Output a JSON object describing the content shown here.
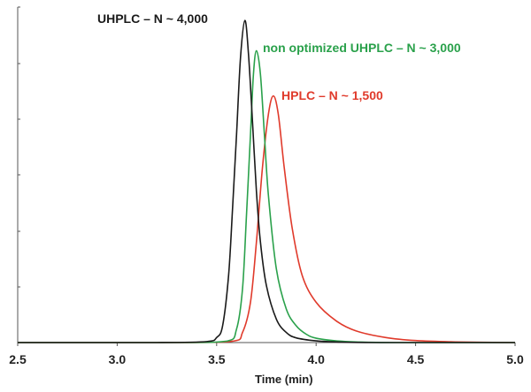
{
  "chart_data": {
    "type": "line",
    "title": "",
    "xlabel": "Time (min)",
    "ylabel": "",
    "xlim": [
      2.5,
      5.0
    ],
    "ylim": [
      0,
      1
    ],
    "x_ticks": [
      2.5,
      3.0,
      3.5,
      4.0,
      4.5,
      5.0
    ],
    "x_tick_labels": [
      "2.5",
      "3.0",
      "3.5",
      "4.0",
      "4.5",
      "5.0"
    ],
    "grid": false,
    "series": [
      {
        "name": "UHPLC – N ~ 4,000",
        "color": "#1a1a1a",
        "peak_x": 3.642,
        "peak_y": 0.96,
        "x": [
          2.5,
          3.2,
          3.45,
          3.5,
          3.53,
          3.56,
          3.58,
          3.6,
          3.62,
          3.642,
          3.66,
          3.68,
          3.7,
          3.72,
          3.75,
          3.8,
          3.85,
          3.9,
          4.0,
          4.1,
          4.3,
          5.0
        ],
        "values": [
          0.0,
          0.0,
          0.003,
          0.015,
          0.05,
          0.2,
          0.4,
          0.62,
          0.85,
          0.96,
          0.86,
          0.66,
          0.45,
          0.3,
          0.17,
          0.07,
          0.03,
          0.014,
          0.005,
          0.002,
          0.0,
          0.0
        ]
      },
      {
        "name": "non optimized UHPLC – N ~ 3,000",
        "color": "#2aa14b",
        "peak_x": 3.7,
        "peak_y": 0.87,
        "x": [
          2.5,
          3.3,
          3.55,
          3.6,
          3.63,
          3.65,
          3.67,
          3.685,
          3.7,
          3.72,
          3.74,
          3.76,
          3.8,
          3.85,
          3.9,
          3.95,
          4.0,
          4.1,
          4.2,
          4.4,
          5.0
        ],
        "values": [
          0.0,
          0.0,
          0.004,
          0.04,
          0.16,
          0.38,
          0.62,
          0.8,
          0.87,
          0.8,
          0.62,
          0.44,
          0.22,
          0.1,
          0.05,
          0.025,
          0.013,
          0.005,
          0.002,
          0.0,
          0.0
        ]
      },
      {
        "name": "HPLC – N ~ 1,500",
        "color": "#e03a2b",
        "peak_x": 3.785,
        "peak_y": 0.735,
        "x": [
          2.5,
          3.3,
          3.58,
          3.63,
          3.67,
          3.7,
          3.73,
          3.76,
          3.785,
          3.81,
          3.84,
          3.88,
          3.93,
          4.0,
          4.1,
          4.2,
          4.35,
          4.5,
          4.7,
          5.0
        ],
        "values": [
          0.0,
          0.0,
          0.004,
          0.03,
          0.12,
          0.3,
          0.52,
          0.68,
          0.735,
          0.68,
          0.52,
          0.34,
          0.2,
          0.12,
          0.065,
          0.035,
          0.015,
          0.006,
          0.002,
          0.0
        ]
      }
    ]
  }
}
